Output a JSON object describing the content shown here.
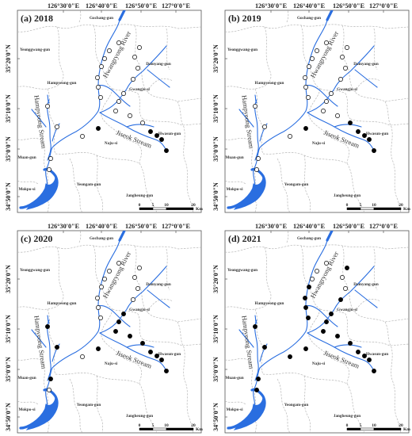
{
  "figure": {
    "lon_labels": [
      "126°30'0\"E",
      "126°40'0\"E",
      "126°50'0\"E",
      "127°0'0\"E"
    ],
    "lat_labels": [
      "35°20'0\"N",
      "35°10'0\"N",
      "35°0'0\"N",
      "34°50'0\"N"
    ],
    "regions": [
      "Gochang-gun",
      "Yeonggwang-gun",
      "Damyang-gun",
      "Hampyeong-gun",
      "Gwangju-si",
      "Hwasun-gun",
      "Naju-si",
      "Muan-gun",
      "Mokpo-si",
      "Yeongam-gun",
      "Jangheung-gun"
    ],
    "rivers": [
      "Hwangryong River",
      "Hampyeong Stream",
      "Jiseok Stream"
    ],
    "scalebar": {
      "ticks": [
        "0",
        "5",
        "10",
        "20"
      ],
      "unit": "Km"
    },
    "colors": {
      "river": "#2a6ee0",
      "border": "#b8b8b8",
      "frame": "#555555",
      "site_filled": "#000000",
      "site_open": "#ffffff"
    },
    "panels": [
      {
        "title": "(a) 2018",
        "filled": [
          17,
          18,
          19,
          20,
          21
        ]
      },
      {
        "title": "(b) 2019",
        "filled": [
          16,
          17,
          18,
          19,
          20,
          21
        ]
      },
      {
        "title": "(c) 2020",
        "filled": [
          12,
          13,
          14,
          15,
          16,
          17,
          18,
          19,
          20,
          21,
          23,
          24,
          25
        ]
      },
      {
        "title": "(d) 2021",
        "filled": [
          4,
          5,
          6,
          7,
          8,
          11,
          12,
          13,
          14,
          15,
          16,
          17,
          18,
          19,
          20,
          21,
          22,
          23,
          24,
          25,
          26
        ]
      }
    ]
  }
}
